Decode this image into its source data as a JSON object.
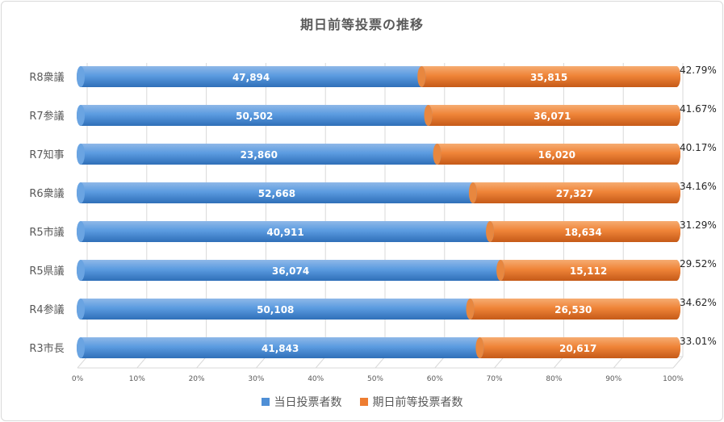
{
  "chart_data": {
    "type": "bar",
    "orientation": "horizontal",
    "stacked": "percent",
    "title": "期日前等投票の推移",
    "categories": [
      "R8衆議",
      "R7参議",
      "R7知事",
      "R6衆議",
      "R5市議",
      "R5県議",
      "R4参議",
      "R3市長"
    ],
    "series": [
      {
        "name": "当日投票者数",
        "color": "#4f8fd6",
        "values": [
          47894,
          50502,
          23860,
          52668,
          40911,
          36074,
          50108,
          41843
        ],
        "labels": [
          "47,894",
          "50,502",
          "23,860",
          "52,668",
          "40,911",
          "36,074",
          "50,108",
          "41,843"
        ]
      },
      {
        "name": "期日前等投票者数",
        "color": "#ee7d31",
        "values": [
          35815,
          36071,
          16020,
          27327,
          18634,
          15112,
          26530,
          20617
        ],
        "labels": [
          "35,815",
          "36,071",
          "16,020",
          "27,327",
          "18,634",
          "15,112",
          "26,530",
          "20,617"
        ]
      }
    ],
    "percent_labels": [
      "42.79%",
      "41.67%",
      "40.17%",
      "34.16%",
      "31.29%",
      "29.52%",
      "34.62%",
      "33.01%"
    ],
    "xticks": [
      "0%",
      "10%",
      "20%",
      "30%",
      "40%",
      "50%",
      "60%",
      "70%",
      "80%",
      "90%",
      "100%"
    ],
    "xlim": [
      0,
      100
    ],
    "grid": true,
    "legend_position": "bottom"
  }
}
